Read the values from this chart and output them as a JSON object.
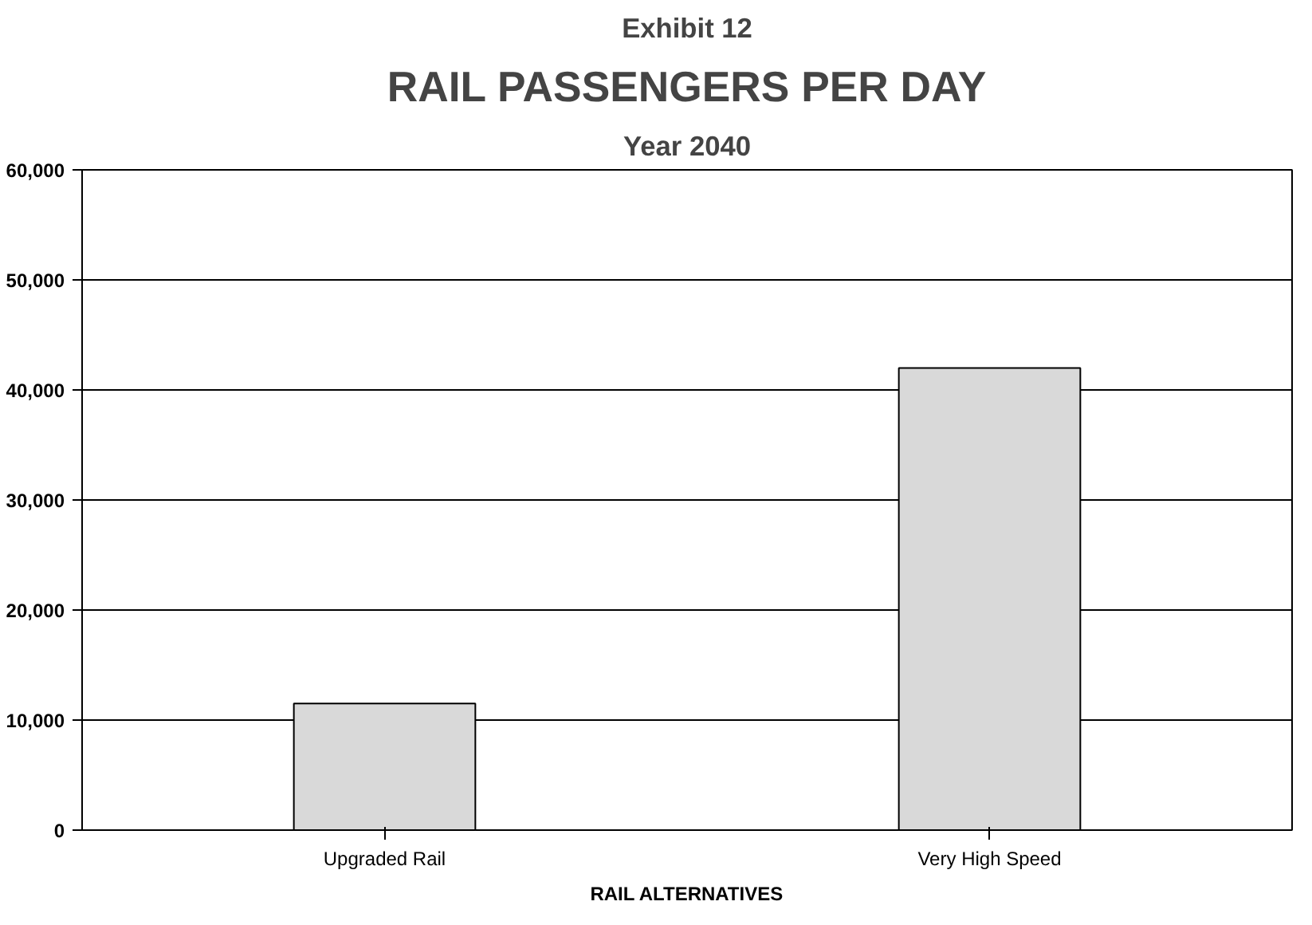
{
  "chart_data": {
    "type": "bar",
    "title": "RAIL PASSENGERS PER DAY",
    "subtitle": "Year 2040",
    "annotations": [
      "Exhibit 12"
    ],
    "xlabel": "RAIL ALTERNATIVES",
    "categories": [
      "Upgraded Rail",
      "Very High Speed"
    ],
    "values": [
      11500,
      42000
    ],
    "color": "#d9d9d9",
    "ylim": [
      0,
      60000
    ],
    "yticks": [
      0,
      {
        "value": 10000,
        "label": "10,000"
      },
      {
        "value": 20000,
        "label": "20,000"
      },
      {
        "value": 30000,
        "label": "30,000"
      },
      {
        "value": 40000,
        "label": "40,000"
      },
      {
        "value": 50000,
        "label": "50,000"
      },
      {
        "value": 60000,
        "label": "60,000"
      }
    ],
    "grid": "y"
  }
}
